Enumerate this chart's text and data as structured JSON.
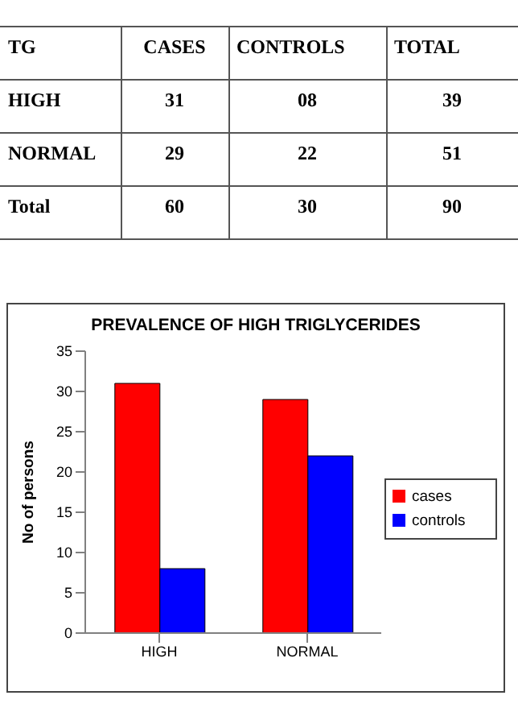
{
  "chart_data": [
    {
      "type": "heatmap",
      "ylabel": "TG",
      "categories": [
        "CASES",
        "CONTROLS",
        "TOTAL"
      ],
      "y_categories": [
        "HIGH",
        "NORMAL",
        "Total"
      ],
      "cells": [
        [
          31,
          8,
          39
        ],
        [
          29,
          22,
          51
        ],
        [
          60,
          30,
          90
        ]
      ],
      "cell_labels": [
        [
          "31",
          "08",
          "39"
        ],
        [
          "29",
          "22",
          "51"
        ],
        [
          "60",
          "30",
          "90"
        ]
      ],
      "data_labels": true
    },
    {
      "type": "bar",
      "title": "PREVALENCE OF HIGH TRIGLYCERIDES",
      "ylabel": "No of persons",
      "categories": [
        "HIGH",
        "NORMAL"
      ],
      "series": [
        {
          "name": "cases",
          "color": "#ff0000",
          "values": [
            31,
            29
          ]
        },
        {
          "name": "controls",
          "color": "#0000ff",
          "values": [
            8,
            22
          ]
        }
      ],
      "ylim": [
        0,
        35
      ],
      "yticks": [
        0,
        5,
        10,
        15,
        20,
        25,
        30,
        35
      ],
      "legend": "right"
    }
  ]
}
